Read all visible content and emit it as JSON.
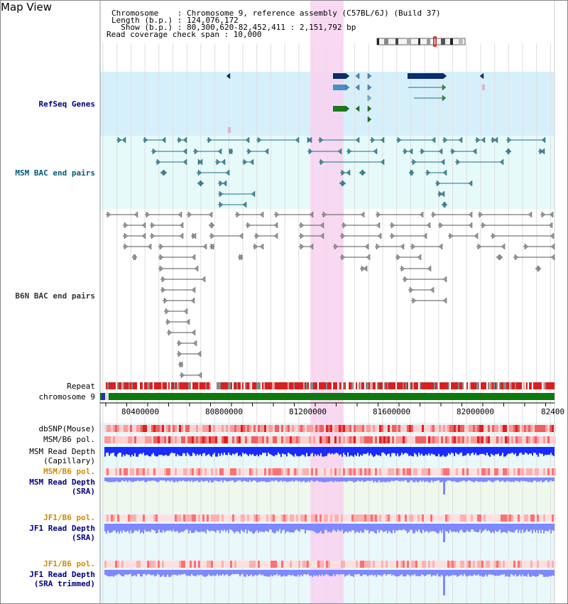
{
  "header": {
    "map_title": "Map View",
    "lines": [
      "Chromosome    : Chromosome 9, reference assembly (C57BL/6J) (Build 37)",
      "Length (b.p.) : 124,076,172",
      "  Show (b.p.) : 80,300,620-82,452,411 : 2,151,792 bp",
      "Read coverage check span : 10,000"
    ]
  },
  "tracks": {
    "refseq": "RefSeq Genes",
    "msm_bac": "MSM BAC end pairs",
    "b6n_bac": "B6N BAC end pairs",
    "repeat": "Repeat",
    "chromosome": "chromosome 9",
    "dbsnp": "dbSNP(Mouse)",
    "msm_b6_pol_1": "MSM/B6 pol.",
    "msm_depth_cap_1": "MSM Read Depth",
    "msm_depth_cap_2": "(Capillary)",
    "msm_b6_pol_2": "MSM/B6 pol.",
    "msm_depth_sra_1": "MSM Read Depth",
    "msm_depth_sra_2": "(SRA)",
    "jf1_b6_pol_1": "JF1/B6 pol.",
    "jf1_depth_sra_1": "JF1 Read Depth",
    "jf1_depth_sra_2": "(SRA)",
    "jf1_b6_pol_2": "JF1/B6 pol.",
    "jf1_depth_trim_1": "JF1 Read Depth",
    "jf1_depth_trim_2": "(SRA trimmed)"
  },
  "axis": {
    "ticks": [
      "80400000",
      "80800000",
      "81200000",
      "81600000",
      "82000000",
      "82400"
    ]
  },
  "colors": {
    "refseq_bg": "#d6f0fb",
    "msm_bg": "#e6fafa",
    "highlight": "#f8d2f0",
    "gene_dark": "#0b2d6b",
    "gene_light": "#4a8ec8",
    "gene_green": "#1a7a1a",
    "msm_bac": "#1a6f86",
    "b6n_bac": "#555555",
    "chromosome_bar": "#0b7a0b",
    "depth_blue": "#1a2bff",
    "depth_light": "#7f88ff",
    "label_navy": "#000080",
    "label_teal": "#005a7a",
    "label_orange": "#d08a00"
  }
}
